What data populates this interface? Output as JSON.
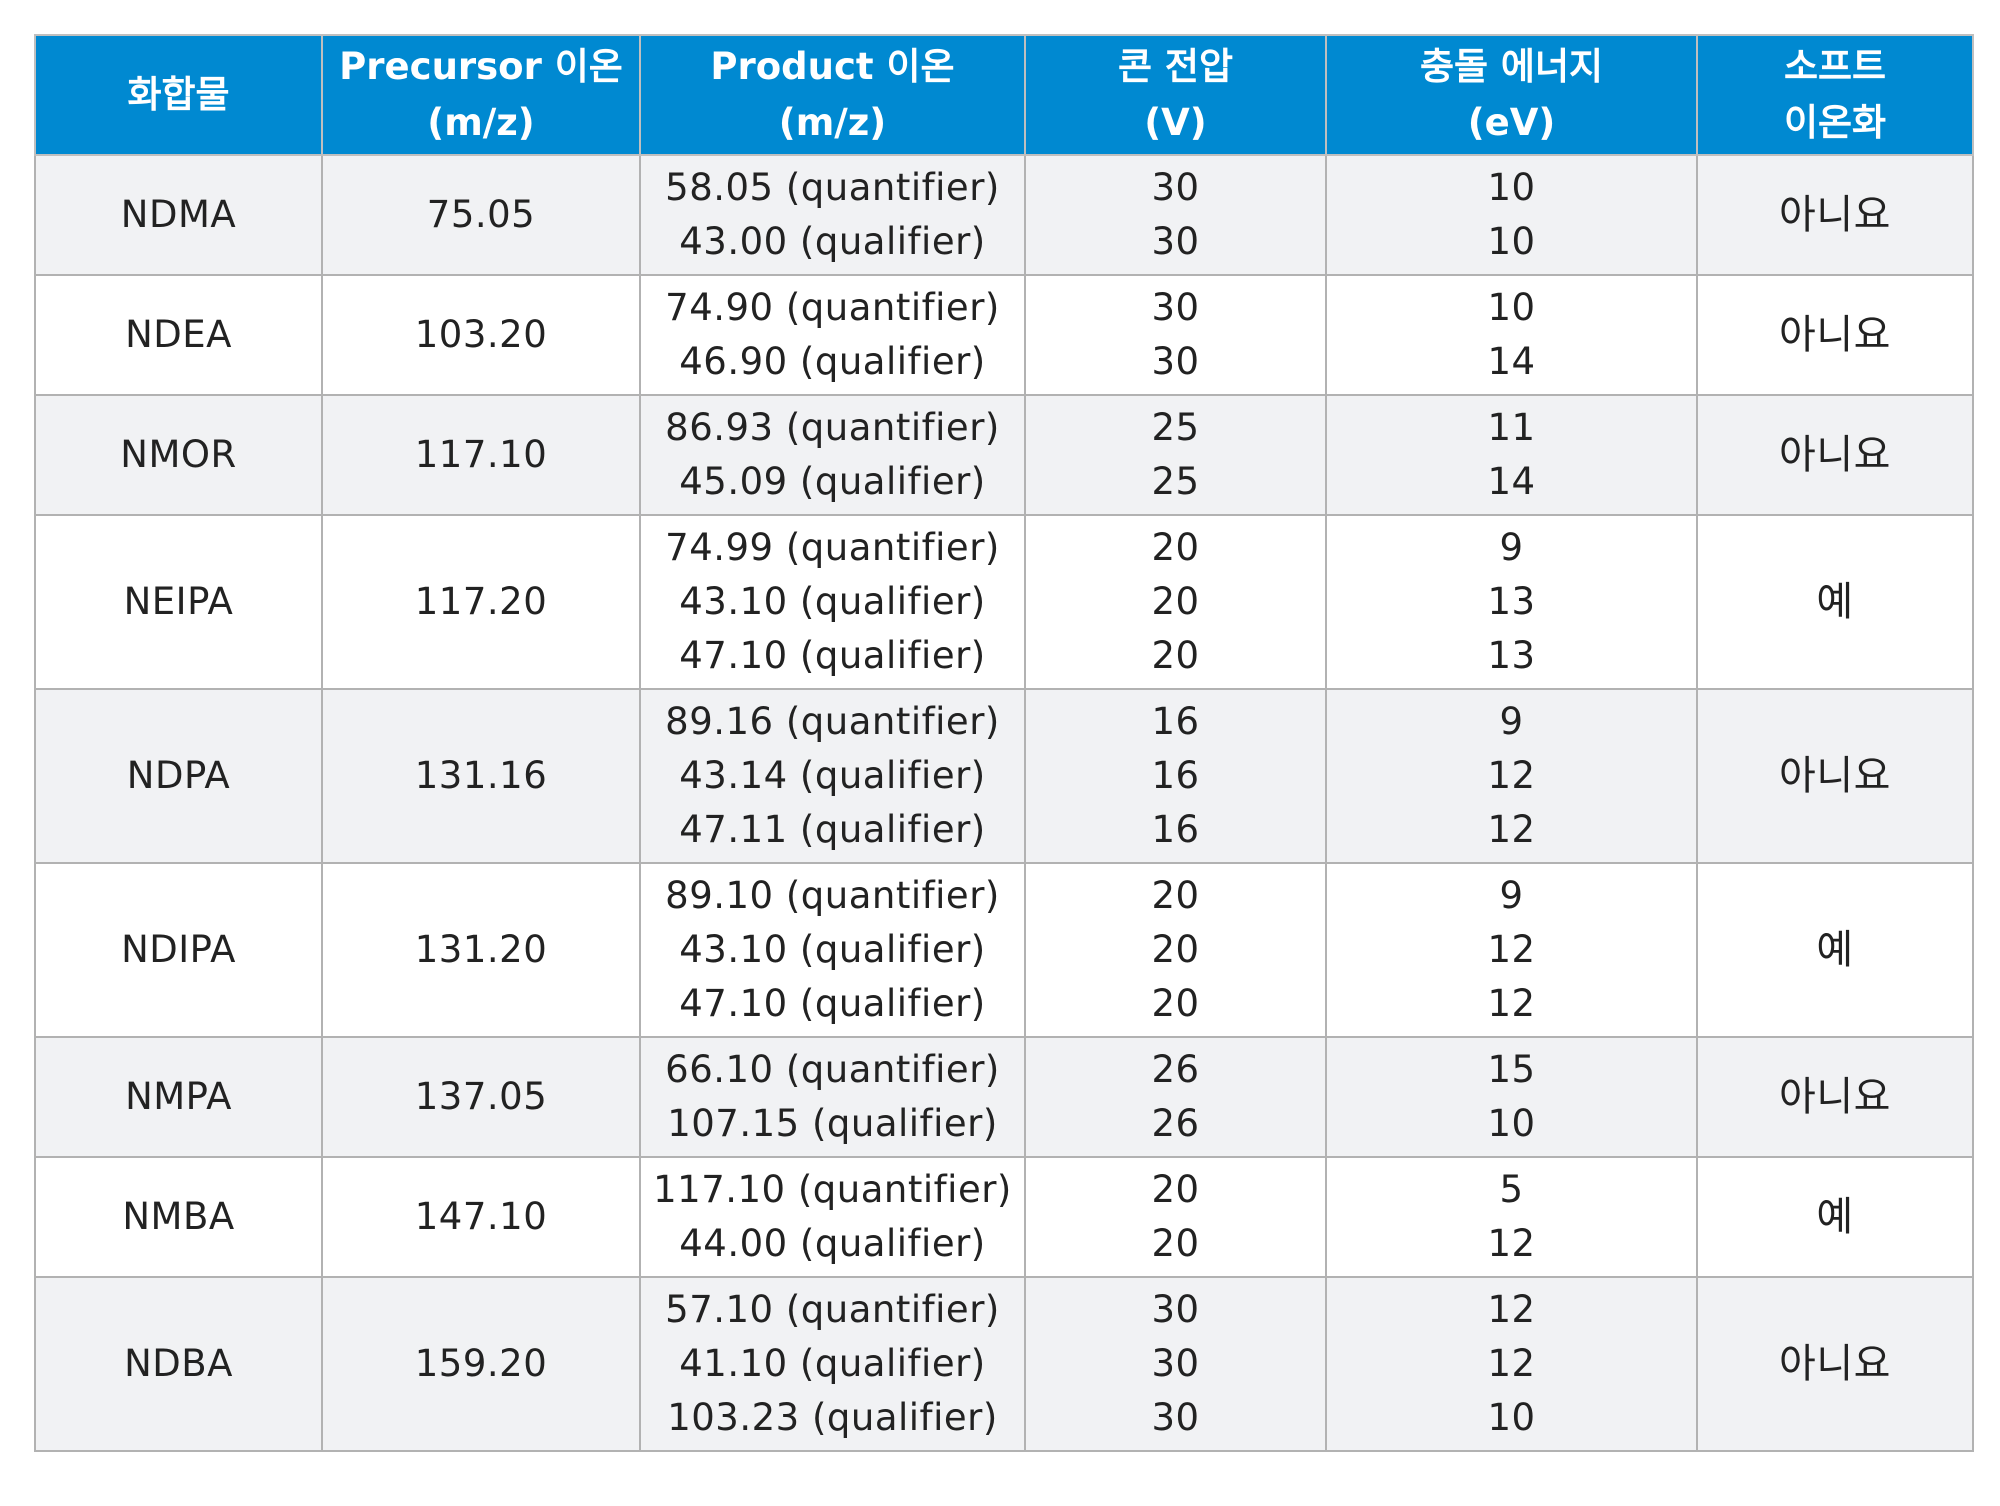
{
  "table": {
    "headers": [
      [
        "화합물"
      ],
      [
        "Precursor 이온",
        "(m/z)"
      ],
      [
        "Product 이온",
        "(m/z)"
      ],
      [
        "콘 전압",
        "(V)"
      ],
      [
        "충돌 에너지",
        "(eV)"
      ],
      [
        "소프트",
        "이온화"
      ]
    ],
    "rows": [
      {
        "compound": "NDMA",
        "precursor": "75.05",
        "products": [
          "58.05 (quantifier)",
          "43.00 (qualifier)"
        ],
        "cone_voltage": [
          "30",
          "30"
        ],
        "collision_energy": [
          "10",
          "10"
        ],
        "soft_ionization": "아니요"
      },
      {
        "compound": "NDEA",
        "precursor": "103.20",
        "products": [
          "74.90 (quantifier)",
          "46.90 (qualifier)"
        ],
        "cone_voltage": [
          "30",
          "30"
        ],
        "collision_energy": [
          "10",
          "14"
        ],
        "soft_ionization": "아니요"
      },
      {
        "compound": "NMOR",
        "precursor": "117.10",
        "products": [
          "86.93 (quantifier)",
          "45.09 (qualifier)"
        ],
        "cone_voltage": [
          "25",
          "25"
        ],
        "collision_energy": [
          "11",
          "14"
        ],
        "soft_ionization": "아니요"
      },
      {
        "compound": "NEIPA",
        "precursor": "117.20",
        "products": [
          "74.99 (quantifier)",
          "43.10 (qualifier)",
          "47.10 (qualifier)"
        ],
        "cone_voltage": [
          "20",
          "20",
          "20"
        ],
        "collision_energy": [
          "9",
          "13",
          "13"
        ],
        "soft_ionization": "예"
      },
      {
        "compound": "NDPA",
        "precursor": "131.16",
        "products": [
          "89.16 (quantifier)",
          "43.14 (qualifier)",
          "47.11 (qualifier)"
        ],
        "cone_voltage": [
          "16",
          "16",
          "16"
        ],
        "collision_energy": [
          "9",
          "12",
          "12"
        ],
        "soft_ionization": "아니요"
      },
      {
        "compound": "NDIPA",
        "precursor": "131.20",
        "products": [
          "89.10 (quantifier)",
          "43.10 (qualifier)",
          "47.10 (qualifier)"
        ],
        "cone_voltage": [
          "20",
          "20",
          "20"
        ],
        "collision_energy": [
          "9",
          "12",
          "12"
        ],
        "soft_ionization": "예"
      },
      {
        "compound": "NMPA",
        "precursor": "137.05",
        "products": [
          "66.10 (quantifier)",
          "107.15 (qualifier)"
        ],
        "cone_voltage": [
          "26",
          "26"
        ],
        "collision_energy": [
          "15",
          "10"
        ],
        "soft_ionization": "아니요"
      },
      {
        "compound": "NMBA",
        "precursor": "147.10",
        "products": [
          "117.10 (quantifier)",
          "44.00 (qualifier)"
        ],
        "cone_voltage": [
          "20",
          "20"
        ],
        "collision_energy": [
          "5",
          "12"
        ],
        "soft_ionization": "예"
      },
      {
        "compound": "NDBA",
        "precursor": "159.20",
        "products": [
          "57.10 (quantifier)",
          "41.10 (qualifier)",
          "103.23 (qualifier)"
        ],
        "cone_voltage": [
          "30",
          "30",
          "30"
        ],
        "collision_energy": [
          "12",
          "12",
          "10"
        ],
        "soft_ionization": "아니요"
      }
    ]
  },
  "colors": {
    "header_background": "#0089d1",
    "header_text": "#ffffff",
    "shaded_row": "#f1f2f4",
    "plain_row": "#ffffff",
    "border": "#b2b2b2"
  }
}
